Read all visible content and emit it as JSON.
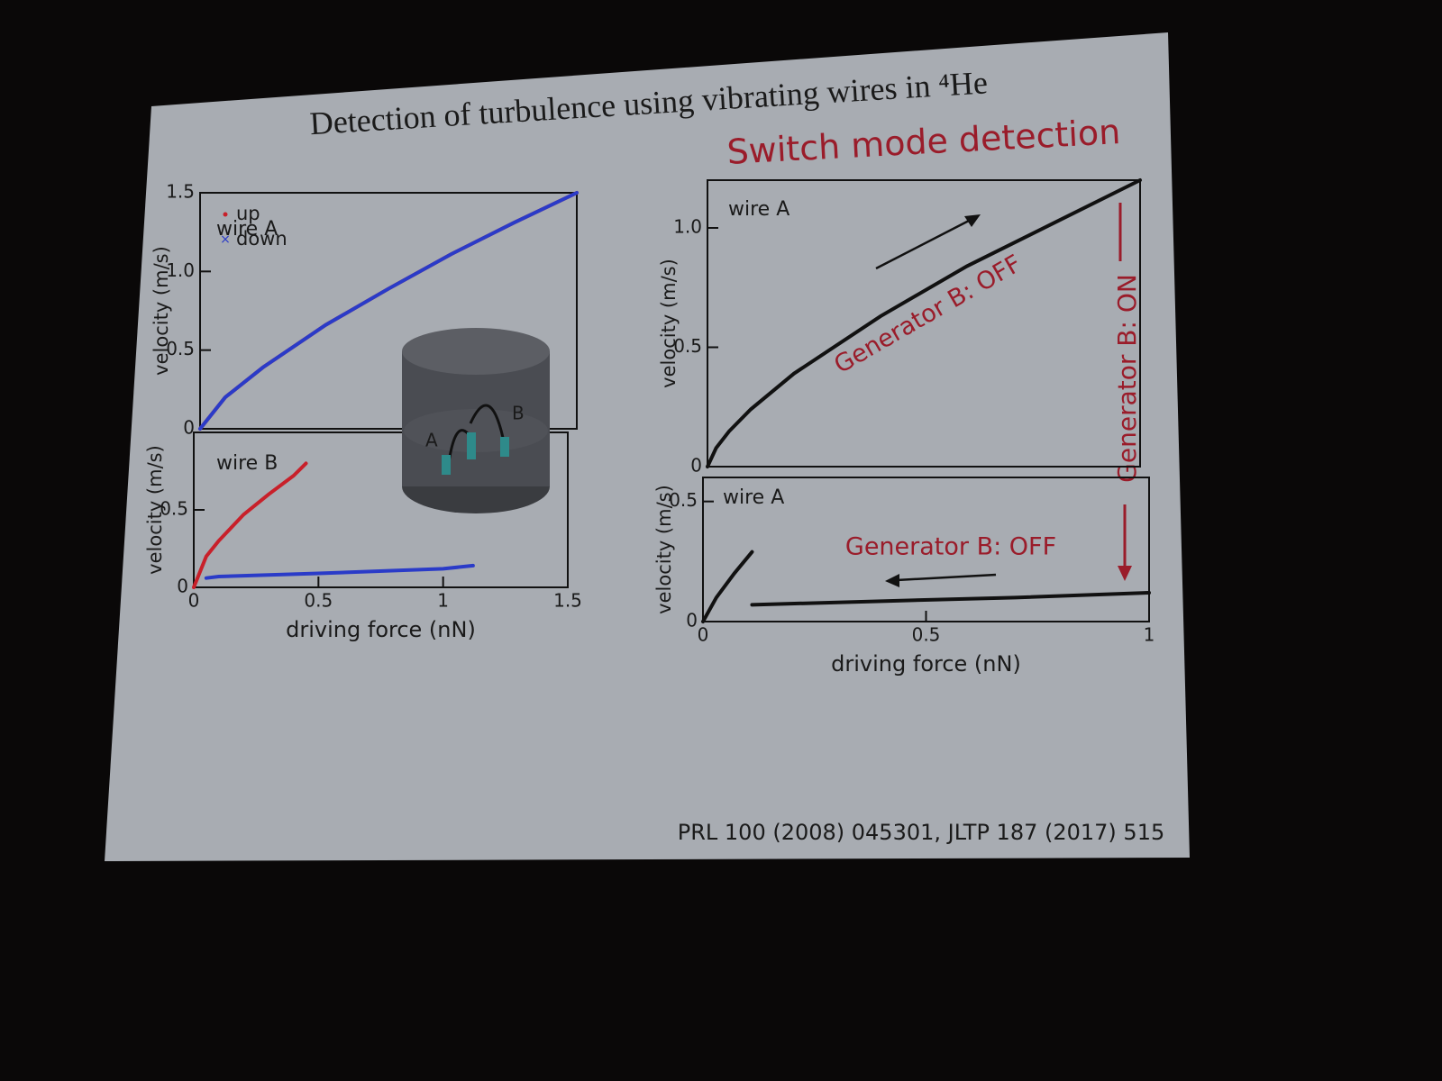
{
  "slide": {
    "title": "Detection of turbulence using vibrating wires in ⁴He",
    "subtitle": "Switch mode detection",
    "side_note": "Generator B: ON",
    "citation": "PRL 100 (2008) 045301, JLTP 187 (2017) 515",
    "inset_labels": [
      "A",
      "B"
    ]
  },
  "chart_data": [
    {
      "type": "line",
      "label": "wire A",
      "ylabel": "velocity (m/s)",
      "legend": "upper left",
      "xlim": [
        0,
        1.5
      ],
      "ylim": [
        0,
        1.5
      ],
      "yticks": [
        0,
        0.5,
        {
          "value": 1,
          "label": "1.0"
        },
        1.5
      ],
      "series": [
        {
          "name": "up",
          "color": "#c8202a",
          "x": [
            0,
            0.1,
            0.25,
            0.5,
            0.75,
            1.0,
            1.25,
            1.5
          ],
          "values": [
            0,
            0.2,
            0.39,
            0.66,
            0.89,
            1.11,
            1.31,
            1.5
          ]
        },
        {
          "name": "down",
          "color": "#2a3bc8",
          "x": [
            0,
            0.1,
            0.25,
            0.5,
            0.75,
            1.0,
            1.25,
            1.5
          ],
          "values": [
            0,
            0.2,
            0.39,
            0.66,
            0.89,
            1.11,
            1.31,
            1.5
          ]
        }
      ]
    },
    {
      "type": "line",
      "label": "wire B",
      "ylabel": "velocity (m/s)",
      "xlabel": "driving force (nN)",
      "xlim": [
        0,
        1.5
      ],
      "xticks": [
        0,
        0.5,
        1,
        1.5
      ],
      "ylim": [
        0,
        1.0
      ],
      "yticks": [
        0,
        0.5
      ],
      "series": [
        {
          "color": "#c8202a",
          "x": [
            0,
            0.05,
            0.1,
            0.2,
            0.3,
            0.4,
            0.45
          ],
          "values": [
            0,
            0.2,
            0.3,
            0.47,
            0.6,
            0.72,
            0.8
          ]
        },
        {
          "color": "#2a3bc8",
          "x": [
            0.05,
            0.1,
            0.5,
            1.0,
            1.12
          ],
          "values": [
            0.06,
            0.07,
            0.09,
            0.12,
            0.14
          ]
        }
      ]
    },
    {
      "type": "line",
      "label": "wire A",
      "ylabel": "velocity (m/s)",
      "annotation": "Generator B: OFF",
      "xlim": [
        0,
        1
      ],
      "ylim": [
        0,
        1.2
      ],
      "yticks": [
        0,
        0.5,
        {
          "value": 1,
          "label": "1.0"
        }
      ],
      "series": [
        {
          "color": "#111111",
          "x": [
            0,
            0.02,
            0.05,
            0.1,
            0.2,
            0.4,
            0.6,
            0.8,
            1.0
          ],
          "values": [
            0,
            0.078,
            0.148,
            0.24,
            0.39,
            0.63,
            0.84,
            1.02,
            1.2
          ]
        }
      ]
    },
    {
      "type": "line",
      "label": "wire A",
      "ylabel": "velocity (m/s)",
      "xlabel": "driving force (nN)",
      "annotation": "Generator B: OFF",
      "xlim": [
        0,
        1
      ],
      "xticks": [
        0,
        0.5,
        1
      ],
      "ylim": [
        0,
        0.6
      ],
      "yticks": [
        0,
        0.5
      ],
      "series": [
        {
          "color": "#111111",
          "x": [
            0,
            0.03,
            0.07,
            0.11
          ],
          "values": [
            0,
            0.1,
            0.2,
            0.29
          ]
        },
        {
          "color": "#111111",
          "x": [
            0.11,
            0.4,
            0.7,
            1.0
          ],
          "values": [
            0.07,
            0.085,
            0.1,
            0.12
          ]
        }
      ]
    }
  ]
}
